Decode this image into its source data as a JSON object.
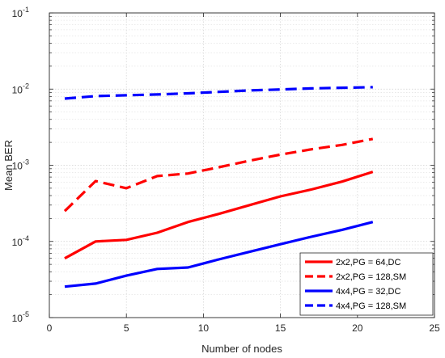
{
  "chart_data": {
    "type": "line",
    "title": "",
    "xlabel": "Number of nodes",
    "ylabel": "Mean BER",
    "xlim": [
      0,
      25
    ],
    "ylim": [
      1e-05,
      0.1
    ],
    "yscale": "log",
    "grid": true,
    "legend_position": "bottom-right",
    "x_ticks": [
      0,
      5,
      10,
      15,
      20,
      25
    ],
    "y_ticks": [
      {
        "value": 1e-05,
        "base": "10",
        "exp": "-5"
      },
      {
        "value": 0.0001,
        "base": "10",
        "exp": "-4"
      },
      {
        "value": 0.001,
        "base": "10",
        "exp": "-3"
      },
      {
        "value": 0.01,
        "base": "10",
        "exp": "-2"
      },
      {
        "value": 0.1,
        "base": "10",
        "exp": "-1"
      }
    ],
    "series": [
      {
        "name": "2x2,PG = 64,DC",
        "color": "#ff0000",
        "dash": "solid",
        "x": [
          1,
          3,
          5,
          7,
          9,
          11,
          13,
          15,
          17,
          19,
          21
        ],
        "y": [
          6e-05,
          0.0001,
          0.000105,
          0.00013,
          0.00018,
          0.00023,
          0.0003,
          0.00039,
          0.00048,
          0.00061,
          0.00082
        ]
      },
      {
        "name": "2x2,PG = 128,SM",
        "color": "#ff0000",
        "dash": "dashed",
        "x": [
          1,
          3,
          5,
          7,
          9,
          11,
          13,
          15,
          17,
          19,
          21
        ],
        "y": [
          0.00025,
          0.00062,
          0.0005,
          0.00072,
          0.00078,
          0.00094,
          0.00115,
          0.00138,
          0.00162,
          0.00185,
          0.00222
        ]
      },
      {
        "name": "4x4,PG = 32,DC",
        "color": "#0000ff",
        "dash": "solid",
        "x": [
          1,
          3,
          5,
          7,
          9,
          11,
          13,
          15,
          17,
          19,
          21
        ],
        "y": [
          2.55e-05,
          2.8e-05,
          3.55e-05,
          4.35e-05,
          4.55e-05,
          5.8e-05,
          7.3e-05,
          9.2e-05,
          0.000115,
          0.000142,
          0.00018
        ]
      },
      {
        "name": "4x4,PG = 128,SM",
        "color": "#0000ff",
        "dash": "dashed",
        "x": [
          1,
          3,
          5,
          7,
          9,
          11,
          13,
          15,
          17,
          19,
          21
        ],
        "y": [
          0.0075,
          0.0081,
          0.0083,
          0.0085,
          0.0088,
          0.0092,
          0.0096,
          0.0099,
          0.0102,
          0.0104,
          0.0106
        ]
      }
    ]
  }
}
